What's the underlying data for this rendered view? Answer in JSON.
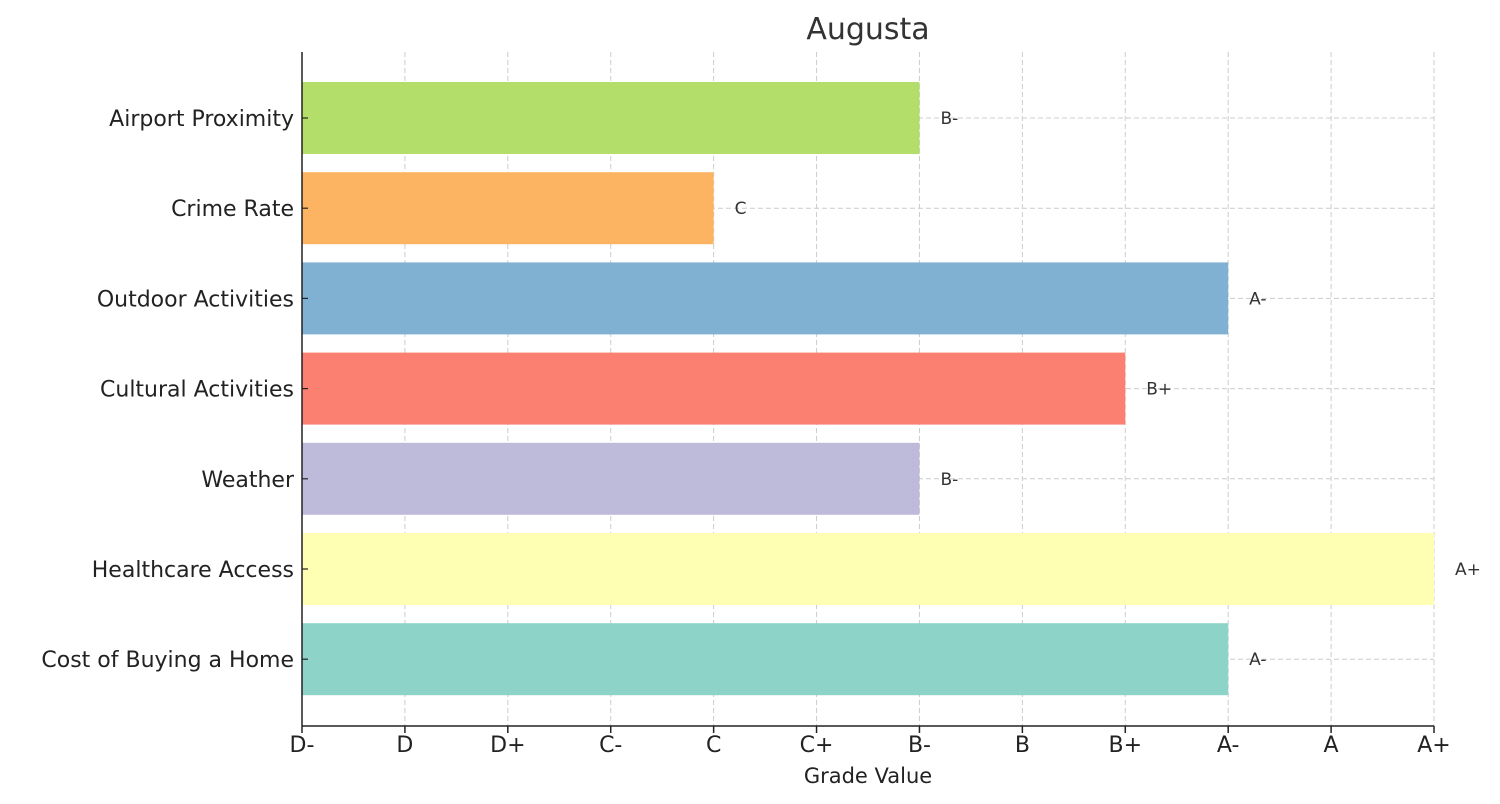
{
  "chart_data": {
    "type": "bar",
    "orientation": "horizontal",
    "title": "Augusta",
    "xlabel": "Grade Value",
    "ylabel": "",
    "x_ticks": [
      "D-",
      "D",
      "D+",
      "C-",
      "C",
      "C+",
      "B-",
      "B",
      "B+",
      "A-",
      "A",
      "A+"
    ],
    "xlim": [
      0,
      11
    ],
    "grid": true,
    "categories": [
      "Airport Proximity",
      "Crime Rate",
      "Outdoor Activities",
      "Cultural Activities",
      "Weather",
      "Healthcare Access",
      "Cost of Buying a Home"
    ],
    "values": [
      6,
      4,
      9,
      8,
      6,
      11,
      9
    ],
    "value_labels": [
      "B-",
      "C",
      "A-",
      "B+",
      "B-",
      "A+",
      "A-"
    ],
    "colors": [
      "#b3de69",
      "#fdb462",
      "#80b1d3",
      "#fb8072",
      "#bebada",
      "#ffffb3",
      "#8dd3c7"
    ]
  }
}
